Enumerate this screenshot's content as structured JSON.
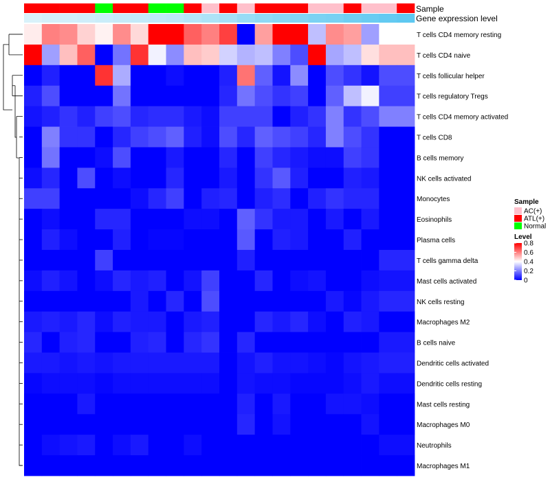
{
  "chart_data": {
    "type": "heatmap",
    "title": "",
    "annotation_tracks": [
      {
        "label": "Sample",
        "values": [
          "ATL(+)",
          "ATL(+)",
          "ATL(+)",
          "ATL(+)",
          "Normal",
          "ATL(+)",
          "ATL(+)",
          "Normal",
          "Normal",
          "ATL(+)",
          "AC(+)",
          "ATL(+)",
          "AC(+)",
          "ATL(+)",
          "ATL(+)",
          "ATL(+)",
          "AC(+)",
          "AC(+)",
          "ATL(+)",
          "AC(+)",
          "AC(+)",
          "ATL(+)"
        ]
      },
      {
        "label": "Gene expression level",
        "values": [
          0.05,
          0.08,
          0.1,
          0.12,
          0.15,
          0.18,
          0.2,
          0.22,
          0.25,
          0.3,
          0.35,
          0.4,
          0.5,
          0.55,
          0.6,
          0.65,
          0.7,
          0.72,
          0.78,
          0.82,
          0.86,
          0.9
        ]
      }
    ],
    "rows": [
      "T cells CD4 memory resting",
      "T cells CD4 naive",
      "T cells follicular helper",
      "T cells regulatory  Tregs",
      "T cells CD4 memory activated",
      "T cells CD8",
      "B cells memory",
      "NK cells activated",
      "Monocytes",
      "Eosinophils",
      "Plasma cells",
      "T cells gamma delta",
      "Mast cells activated",
      "NK cells resting",
      "Macrophages M2",
      "B cells naive",
      "Dendritic cells activated",
      "Dendritic cells resting",
      "Mast cells resting",
      "Macrophages M0",
      "Neutrophils",
      "Macrophages M1"
    ],
    "values": [
      [
        0.43,
        0.6,
        0.58,
        0.47,
        0.42,
        0.58,
        0.46,
        0.8,
        0.8,
        0.65,
        0.6,
        0.7,
        0.0,
        0.55,
        0.8,
        0.8,
        0.3,
        0.58,
        0.55,
        0.25,
        0.4,
        0.4
      ],
      [
        0.8,
        0.25,
        0.5,
        0.65,
        0.0,
        0.18,
        0.72,
        0.38,
        0.22,
        0.5,
        0.48,
        0.33,
        0.28,
        0.3,
        0.2,
        0.12,
        0.8,
        0.26,
        0.3,
        0.45,
        0.5,
        0.5
      ],
      [
        0.0,
        0.05,
        0.0,
        0.0,
        0.72,
        0.27,
        0.0,
        0.0,
        0.02,
        0.0,
        0.0,
        0.05,
        0.62,
        0.15,
        0.03,
        0.22,
        0.0,
        0.12,
        0.08,
        0.03,
        0.12,
        0.12
      ],
      [
        0.05,
        0.12,
        0.0,
        0.0,
        0.0,
        0.18,
        0.0,
        0.0,
        0.0,
        0.0,
        0.0,
        0.06,
        0.18,
        0.12,
        0.08,
        0.1,
        0.0,
        0.15,
        0.3,
        0.38,
        0.1,
        0.1
      ],
      [
        0.03,
        0.05,
        0.08,
        0.05,
        0.1,
        0.12,
        0.06,
        0.07,
        0.07,
        0.04,
        0.02,
        0.1,
        0.1,
        0.1,
        0.0,
        0.05,
        0.08,
        0.2,
        0.08,
        0.12,
        0.2,
        0.2
      ],
      [
        0.0,
        0.2,
        0.08,
        0.08,
        0.0,
        0.06,
        0.1,
        0.12,
        0.15,
        0.05,
        0.02,
        0.12,
        0.06,
        0.15,
        0.12,
        0.1,
        0.06,
        0.2,
        0.12,
        0.08,
        0.0,
        0.0
      ],
      [
        0.0,
        0.18,
        0.0,
        0.0,
        0.02,
        0.12,
        0.0,
        0.0,
        0.04,
        0.0,
        0.0,
        0.06,
        0.0,
        0.1,
        0.06,
        0.04,
        0.02,
        0.02,
        0.1,
        0.08,
        0.0,
        0.0
      ],
      [
        0.02,
        0.06,
        0.0,
        0.12,
        0.0,
        0.02,
        0.0,
        0.0,
        0.06,
        0.0,
        0.0,
        0.04,
        0.0,
        0.08,
        0.14,
        0.05,
        0.0,
        0.0,
        0.05,
        0.04,
        0.0,
        0.0
      ],
      [
        0.1,
        0.1,
        0.0,
        0.0,
        0.0,
        0.0,
        0.02,
        0.06,
        0.1,
        0.0,
        0.05,
        0.06,
        0.0,
        0.05,
        0.07,
        0.0,
        0.05,
        0.08,
        0.06,
        0.06,
        0.0,
        0.0
      ],
      [
        0.0,
        0.02,
        0.0,
        0.0,
        0.06,
        0.06,
        0.0,
        0.0,
        0.0,
        0.02,
        0.02,
        0.0,
        0.15,
        0.08,
        0.04,
        0.04,
        0.0,
        0.04,
        0.0,
        0.04,
        0.0,
        0.0
      ],
      [
        0.0,
        0.05,
        0.02,
        0.0,
        0.0,
        0.05,
        0.0,
        0.01,
        0.01,
        0.0,
        0.0,
        0.0,
        0.14,
        0.0,
        0.05,
        0.04,
        0.0,
        0.0,
        0.05,
        0.0,
        0.0,
        0.0
      ],
      [
        0.0,
        0.0,
        0.0,
        0.0,
        0.1,
        0.0,
        0.0,
        0.0,
        0.0,
        0.0,
        0.0,
        0.0,
        0.05,
        0.0,
        0.0,
        0.0,
        0.0,
        0.0,
        0.0,
        0.0,
        0.06,
        0.06
      ],
      [
        0.02,
        0.05,
        0.03,
        0.0,
        0.02,
        0.06,
        0.04,
        0.05,
        0.0,
        0.03,
        0.1,
        0.0,
        0.0,
        0.06,
        0.0,
        0.02,
        0.03,
        0.0,
        0.0,
        0.02,
        0.03,
        0.03
      ],
      [
        0.0,
        0.0,
        0.0,
        0.0,
        0.0,
        0.0,
        0.04,
        0.0,
        0.06,
        0.0,
        0.12,
        0.0,
        0.0,
        0.0,
        0.0,
        0.0,
        0.0,
        0.04,
        0.01,
        0.04,
        0.06,
        0.06
      ],
      [
        0.04,
        0.05,
        0.04,
        0.06,
        0.02,
        0.05,
        0.04,
        0.04,
        0.0,
        0.04,
        0.05,
        0.0,
        0.0,
        0.06,
        0.04,
        0.06,
        0.02,
        0.0,
        0.05,
        0.04,
        0.0,
        0.0
      ],
      [
        0.06,
        0.0,
        0.05,
        0.06,
        0.0,
        0.0,
        0.05,
        0.06,
        0.0,
        0.06,
        0.08,
        0.0,
        0.06,
        0.0,
        0.0,
        0.0,
        0.0,
        0.0,
        0.0,
        0.0,
        0.04,
        0.04
      ],
      [
        0.04,
        0.04,
        0.03,
        0.04,
        0.03,
        0.04,
        0.04,
        0.04,
        0.04,
        0.04,
        0.04,
        0.0,
        0.03,
        0.05,
        0.03,
        0.03,
        0.02,
        0.01,
        0.03,
        0.04,
        0.05,
        0.05
      ],
      [
        0.01,
        0.02,
        0.02,
        0.02,
        0.01,
        0.02,
        0.02,
        0.02,
        0.02,
        0.02,
        0.02,
        0.0,
        0.03,
        0.02,
        0.02,
        0.01,
        0.01,
        0.01,
        0.02,
        0.04,
        0.02,
        0.02
      ],
      [
        0.0,
        0.0,
        0.0,
        0.04,
        0.0,
        0.0,
        0.0,
        0.0,
        0.0,
        0.0,
        0.0,
        0.0,
        0.05,
        0.0,
        0.04,
        0.0,
        0.0,
        0.03,
        0.03,
        0.02,
        0.0,
        0.0
      ],
      [
        0.0,
        0.0,
        0.0,
        0.0,
        0.0,
        0.0,
        0.0,
        0.0,
        0.0,
        0.0,
        0.0,
        0.0,
        0.06,
        0.0,
        0.03,
        0.0,
        0.0,
        0.0,
        0.0,
        0.03,
        0.0,
        0.0
      ],
      [
        0.0,
        0.02,
        0.03,
        0.04,
        0.0,
        0.02,
        0.04,
        0.0,
        0.0,
        0.02,
        0.0,
        0.0,
        0.0,
        0.0,
        0.0,
        0.0,
        0.0,
        0.0,
        0.0,
        0.0,
        0.02,
        0.02
      ],
      [
        0.0,
        0.0,
        0.0,
        0.0,
        0.0,
        0.0,
        0.0,
        0.0,
        0.0,
        0.0,
        0.0,
        0.0,
        0.0,
        0.0,
        0.0,
        0.0,
        0.0,
        0.0,
        0.0,
        0.0,
        0.0,
        0.0
      ]
    ],
    "color_scale": {
      "low": "#0000ff",
      "mid": "#ffffff",
      "high": "#ff0000",
      "range": [
        0,
        0.8
      ],
      "mid_value": 0.4
    },
    "row_dendrogram": true,
    "legend_placement": "right"
  },
  "legend": {
    "sample_title": "Sample",
    "sample_entries": [
      {
        "label": "AC(+)",
        "color": "#ffc0cb"
      },
      {
        "label": "ATL(+)",
        "color": "#ff0000"
      },
      {
        "label": "Normal",
        "color": "#00ff00"
      }
    ],
    "level_title": "Level",
    "level_ticks": [
      "0.8",
      "0.6",
      "0.4",
      "0.2",
      "0"
    ],
    "expression_light": "#e0f4fb",
    "expression_dark": "#4fc3f0"
  }
}
